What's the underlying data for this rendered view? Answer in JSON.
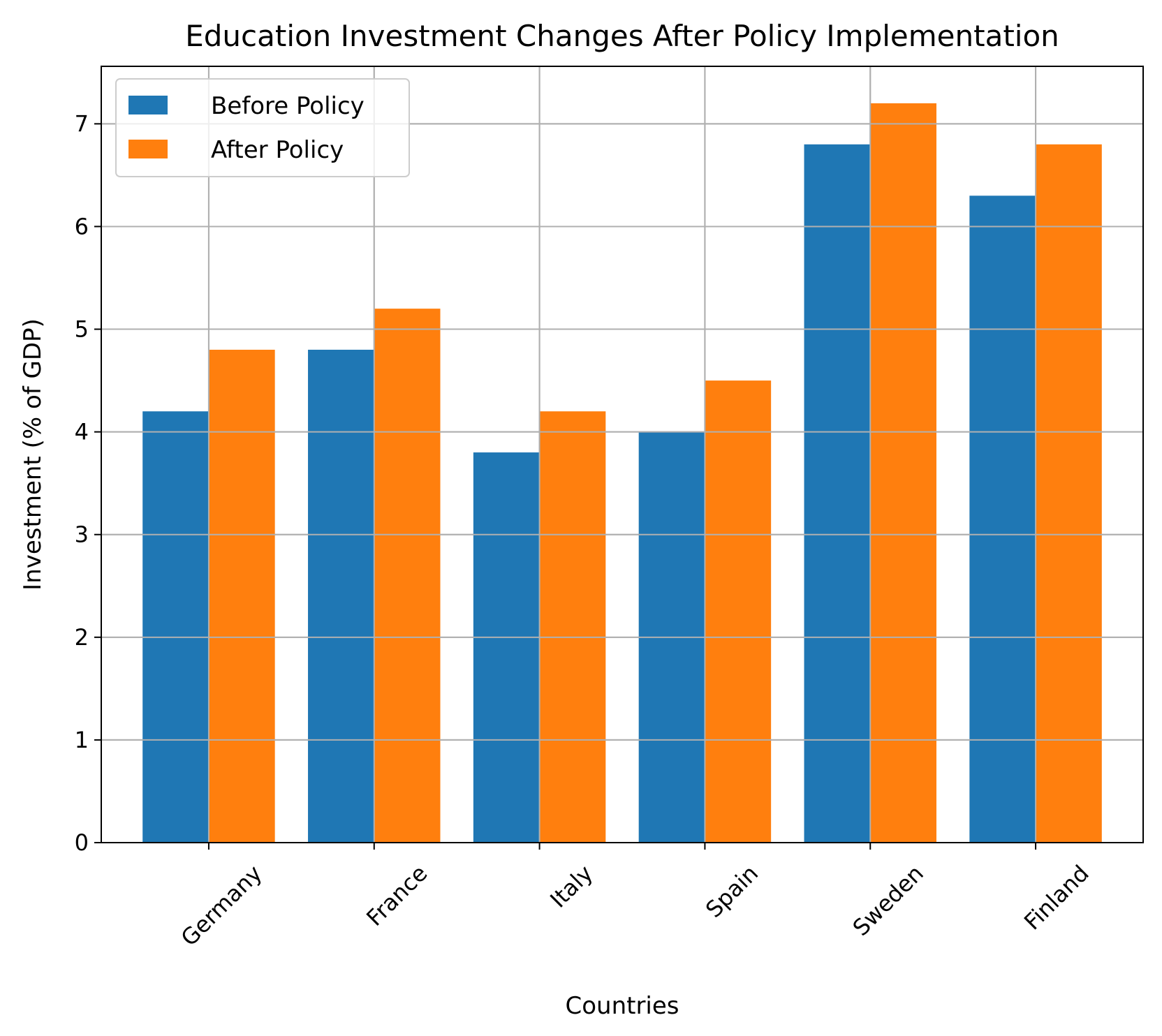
{
  "chart_data": {
    "type": "bar",
    "title": "Education Investment Changes After Policy Implementation",
    "xlabel": "Countries",
    "ylabel": "Investment (% of GDP)",
    "categories": [
      "Germany",
      "France",
      "Italy",
      "Spain",
      "Sweden",
      "Finland"
    ],
    "series": [
      {
        "name": "Before Policy",
        "color": "#1f77b4",
        "values": [
          4.2,
          4.8,
          3.8,
          4.0,
          6.8,
          6.3
        ]
      },
      {
        "name": "After Policy",
        "color": "#ff7f0e",
        "values": [
          4.8,
          5.2,
          4.2,
          4.5,
          7.2,
          6.8
        ]
      }
    ],
    "ylim": [
      0,
      7.56
    ],
    "yticks": [
      0,
      1,
      2,
      3,
      4,
      5,
      6,
      7
    ],
    "grid": true,
    "legend_position": "top-left"
  }
}
